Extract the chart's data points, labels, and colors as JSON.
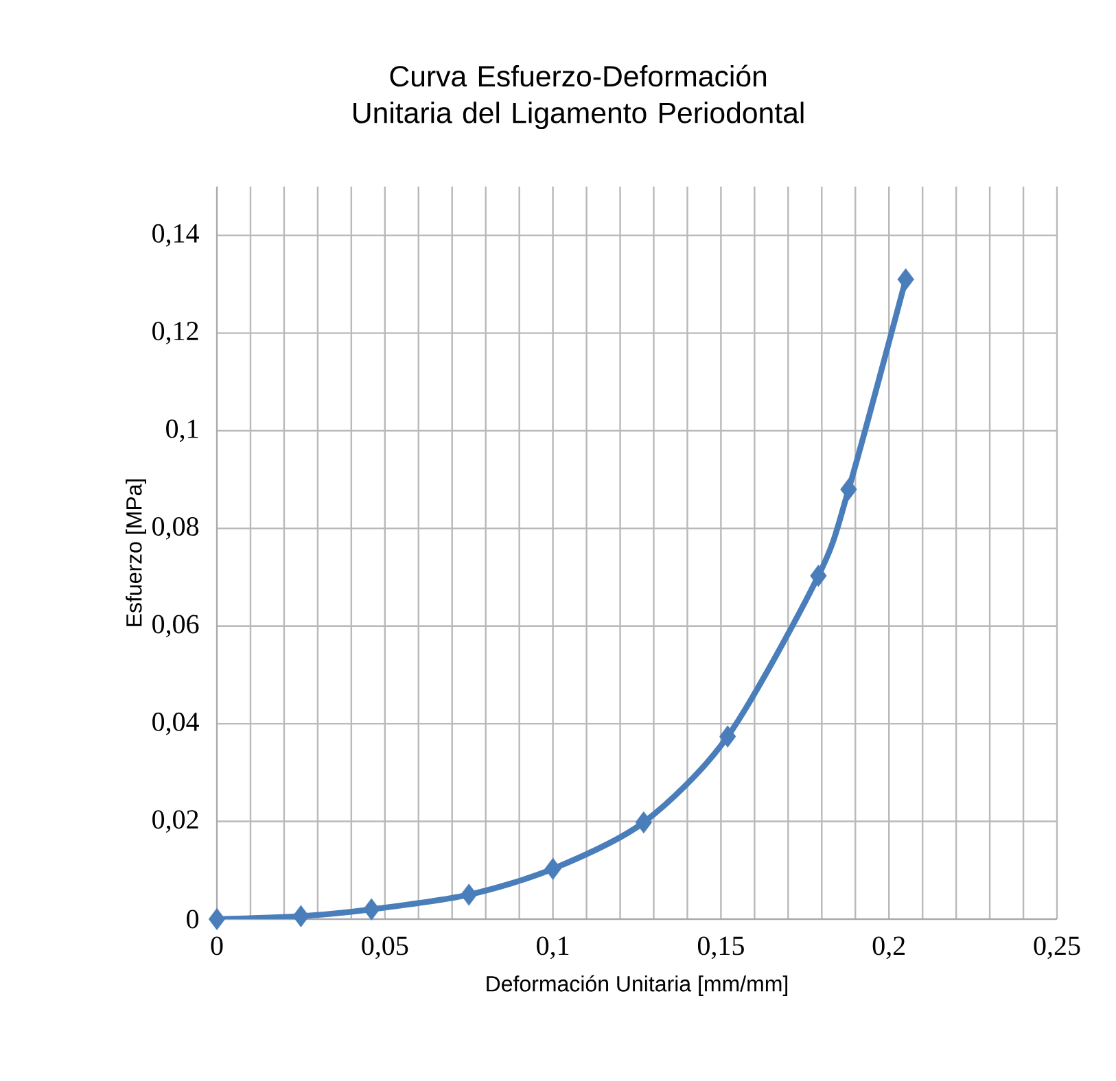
{
  "chart_data": {
    "type": "line",
    "title": "Curva Esfuerzo-Deformación Unitaria del Ligamento Periodontal",
    "xlabel": "Deformación Unitaria [mm/mm]",
    "ylabel": "Esfuerzo [MPa]",
    "x": [
      0,
      0.025,
      0.046,
      0.075,
      0.1,
      0.127,
      0.152,
      0.179,
      0.188,
      0.205
    ],
    "series": [
      {
        "color": "#4a7ebb",
        "values": [
          0,
          0.0006,
          0.002,
          0.005,
          0.0103,
          0.0198,
          0.0374,
          0.0703,
          0.088,
          0.131
        ]
      }
    ],
    "xlim": [
      0,
      0.25
    ],
    "ylim": [
      0,
      0.15
    ],
    "xticks": [
      0,
      {
        "value": 0.01,
        "label": null
      },
      {
        "value": 0.02,
        "label": null
      },
      {
        "value": 0.03,
        "label": null
      },
      {
        "value": 0.04,
        "label": null
      },
      {
        "value": 0.05,
        "label": "0,05"
      },
      {
        "value": 0.06,
        "label": null
      },
      {
        "value": 0.07,
        "label": null
      },
      {
        "value": 0.08,
        "label": null
      },
      {
        "value": 0.09,
        "label": null
      },
      {
        "value": 0.1,
        "label": "0,1"
      },
      {
        "value": 0.11,
        "label": null
      },
      {
        "value": 0.12,
        "label": null
      },
      {
        "value": 0.13,
        "label": null
      },
      {
        "value": 0.14,
        "label": null
      },
      {
        "value": 0.15,
        "label": "0,15"
      },
      {
        "value": 0.16,
        "label": null
      },
      {
        "value": 0.17,
        "label": null
      },
      {
        "value": 0.18,
        "label": null
      },
      {
        "value": 0.19,
        "label": null
      },
      {
        "value": 0.2,
        "label": "0,2"
      },
      {
        "value": 0.21,
        "label": null
      },
      {
        "value": 0.22,
        "label": null
      },
      {
        "value": 0.23,
        "label": null
      },
      {
        "value": 0.24,
        "label": null
      },
      {
        "value": 0.25,
        "label": "0,25"
      }
    ],
    "yticks": [
      0,
      {
        "value": 0.02,
        "label": "0,02"
      },
      {
        "value": 0.04,
        "label": "0,04"
      },
      {
        "value": 0.06,
        "label": "0,06"
      },
      {
        "value": 0.08,
        "label": "0,08"
      },
      {
        "value": 0.1,
        "label": "0,1"
      },
      {
        "value": 0.12,
        "label": "0,12"
      },
      {
        "value": 0.14,
        "label": "0,14"
      }
    ],
    "grid": true,
    "marker": "diamond",
    "line_style": "solid"
  }
}
